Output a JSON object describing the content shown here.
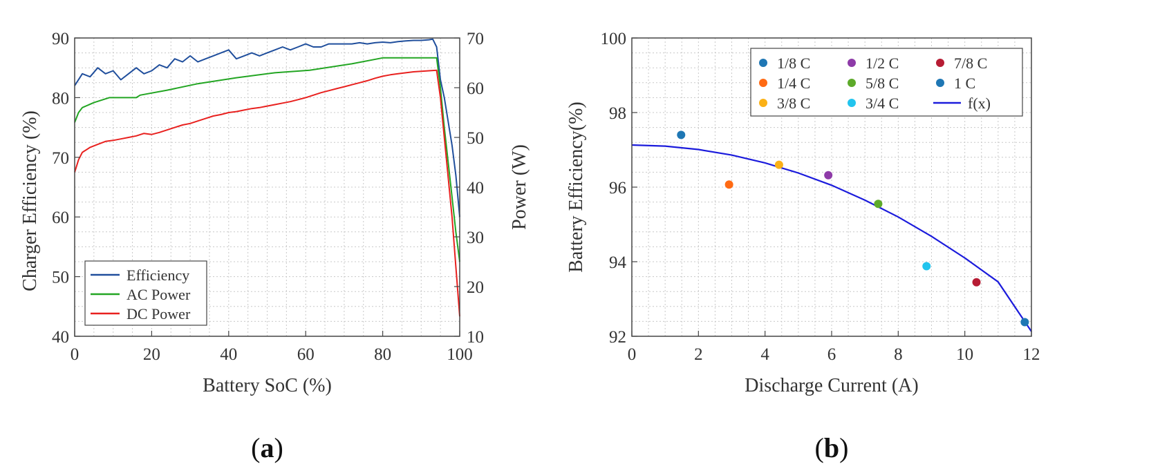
{
  "chart_data": [
    {
      "panel": "(a)",
      "type": "line",
      "xlabel": "Battery SoC (%)",
      "ylabel_left": "Charger Efficiency (%)",
      "ylabel_right": "Power (W)",
      "xlim": [
        0,
        100
      ],
      "ylim_left": [
        40,
        90
      ],
      "ylim_right": [
        10,
        70
      ],
      "x_ticks": [
        0,
        20,
        40,
        60,
        80,
        100
      ],
      "y_ticks_left": [
        40,
        50,
        60,
        70,
        80,
        90
      ],
      "y_ticks_right": [
        10,
        20,
        30,
        40,
        50,
        60,
        70
      ],
      "grid": true,
      "legend_position": "bottom-left",
      "series": [
        {
          "name": "Efficiency",
          "axis": "left",
          "color": "#1f4e9c",
          "points": [
            [
              0,
              82
            ],
            [
              2,
              84
            ],
            [
              4,
              83.5
            ],
            [
              6,
              85
            ],
            [
              8,
              84
            ],
            [
              10,
              84.5
            ],
            [
              12,
              83
            ],
            [
              14,
              84
            ],
            [
              16,
              85
            ],
            [
              18,
              84
            ],
            [
              20,
              84.5
            ],
            [
              22,
              85.5
            ],
            [
              24,
              85
            ],
            [
              26,
              86.5
            ],
            [
              28,
              86
            ],
            [
              30,
              87
            ],
            [
              32,
              86
            ],
            [
              34,
              86.5
            ],
            [
              36,
              87
            ],
            [
              38,
              87.5
            ],
            [
              40,
              88
            ],
            [
              42,
              86.5
            ],
            [
              44,
              87
            ],
            [
              46,
              87.5
            ],
            [
              48,
              87
            ],
            [
              50,
              87.5
            ],
            [
              52,
              88
            ],
            [
              54,
              88.5
            ],
            [
              56,
              88
            ],
            [
              58,
              88.5
            ],
            [
              60,
              89
            ],
            [
              62,
              88.5
            ],
            [
              64,
              88.5
            ],
            [
              66,
              89
            ],
            [
              68,
              89
            ],
            [
              70,
              89
            ],
            [
              72,
              89
            ],
            [
              74,
              89.2
            ],
            [
              76,
              89
            ],
            [
              78,
              89.2
            ],
            [
              80,
              89.3
            ],
            [
              82,
              89.2
            ],
            [
              84,
              89.4
            ],
            [
              86,
              89.5
            ],
            [
              88,
              89.6
            ],
            [
              90,
              89.6
            ],
            [
              92,
              89.7
            ],
            [
              93,
              89.8
            ],
            [
              94,
              88.5
            ],
            [
              95,
              83
            ],
            [
              96,
              80
            ],
            [
              97,
              76
            ],
            [
              98,
              72
            ],
            [
              99,
              67
            ],
            [
              100,
              60
            ]
          ]
        },
        {
          "name": "AC Power",
          "axis": "right",
          "color": "#22a522",
          "points": [
            [
              0,
              53
            ],
            [
              1,
              55
            ],
            [
              2,
              56
            ],
            [
              5,
              57
            ],
            [
              9,
              58
            ],
            [
              16,
              58
            ],
            [
              17,
              58.5
            ],
            [
              24,
              59.5
            ],
            [
              32,
              60.8
            ],
            [
              42,
              62
            ],
            [
              52,
              63
            ],
            [
              61,
              63.5
            ],
            [
              72,
              64.8
            ],
            [
              80,
              66
            ],
            [
              94,
              66
            ],
            [
              95,
              60
            ],
            [
              96,
              52
            ],
            [
              97,
              45
            ],
            [
              98,
              38
            ],
            [
              99,
              31
            ],
            [
              100,
              25
            ]
          ]
        },
        {
          "name": "DC Power",
          "axis": "right",
          "color": "#e8201e",
          "points": [
            [
              0,
              43
            ],
            [
              1,
              45.5
            ],
            [
              2,
              47
            ],
            [
              4,
              48
            ],
            [
              6,
              48.6
            ],
            [
              8,
              49.2
            ],
            [
              10,
              49.4
            ],
            [
              12,
              49.7
            ],
            [
              14,
              50
            ],
            [
              16,
              50.3
            ],
            [
              18,
              50.8
            ],
            [
              20,
              50.6
            ],
            [
              22,
              51
            ],
            [
              24,
              51.5
            ],
            [
              26,
              52
            ],
            [
              28,
              52.5
            ],
            [
              30,
              52.8
            ],
            [
              32,
              53.3
            ],
            [
              34,
              53.8
            ],
            [
              36,
              54.3
            ],
            [
              38,
              54.6
            ],
            [
              40,
              55
            ],
            [
              42,
              55.2
            ],
            [
              44,
              55.5
            ],
            [
              46,
              55.8
            ],
            [
              48,
              56
            ],
            [
              50,
              56.3
            ],
            [
              52,
              56.6
            ],
            [
              54,
              56.9
            ],
            [
              56,
              57.2
            ],
            [
              58,
              57.6
            ],
            [
              60,
              58
            ],
            [
              62,
              58.5
            ],
            [
              64,
              59
            ],
            [
              66,
              59.4
            ],
            [
              68,
              59.8
            ],
            [
              70,
              60.2
            ],
            [
              72,
              60.6
            ],
            [
              74,
              61
            ],
            [
              76,
              61.4
            ],
            [
              78,
              61.9
            ],
            [
              80,
              62.3
            ],
            [
              82,
              62.6
            ],
            [
              84,
              62.8
            ],
            [
              86,
              63
            ],
            [
              88,
              63.2
            ],
            [
              90,
              63.3
            ],
            [
              92,
              63.4
            ],
            [
              94,
              63.5
            ],
            [
              95,
              58
            ],
            [
              96,
              50
            ],
            [
              97,
              42
            ],
            [
              98,
              34
            ],
            [
              99,
              24
            ],
            [
              100,
              14
            ]
          ]
        }
      ]
    },
    {
      "panel": "(b)",
      "type": "scatter",
      "xlabel": "Discharge Current (A)",
      "ylabel": "Battery Efficiency(%)",
      "xlim": [
        0,
        12
      ],
      "ylim": [
        92,
        100
      ],
      "x_ticks": [
        0,
        2,
        4,
        6,
        8,
        10,
        12
      ],
      "y_ticks": [
        92,
        94,
        96,
        98,
        100
      ],
      "grid": true,
      "legend_position": "top",
      "points": [
        {
          "name": "1/8 C",
          "x": 1.48,
          "y": 97.4,
          "color": "#1f77b4"
        },
        {
          "name": "1/4 C",
          "x": 2.92,
          "y": 96.07,
          "color": "#ff6a13"
        },
        {
          "name": "3/8 C",
          "x": 4.42,
          "y": 96.6,
          "color": "#fbb116"
        },
        {
          "name": "1/2 C",
          "x": 5.9,
          "y": 96.32,
          "color": "#8e3ba8"
        },
        {
          "name": "5/8 C",
          "x": 7.4,
          "y": 95.55,
          "color": "#5daa2a"
        },
        {
          "name": "3/4 C",
          "x": 8.85,
          "y": 93.88,
          "color": "#22c4ee"
        },
        {
          "name": "7/8 C",
          "x": 10.35,
          "y": 93.45,
          "color": "#b71c34"
        },
        {
          "name": "1 C",
          "x": 11.8,
          "y": 92.38,
          "color": "#1f77b4"
        }
      ],
      "fit": {
        "name": "f(x)",
        "color": "#1b1bdc",
        "points": [
          [
            0,
            97.13
          ],
          [
            1,
            97.1
          ],
          [
            2,
            97.01
          ],
          [
            3,
            96.86
          ],
          [
            4,
            96.65
          ],
          [
            5,
            96.38
          ],
          [
            6,
            96.05
          ],
          [
            7,
            95.65
          ],
          [
            8,
            95.2
          ],
          [
            9,
            94.68
          ],
          [
            10,
            94.1
          ],
          [
            11,
            93.46
          ],
          [
            12,
            92.13
          ]
        ]
      },
      "legend_order": [
        "1/8 C",
        "1/2 C",
        "7/8 C",
        "1/4 C",
        "5/8 C",
        "1 C",
        "3/8 C",
        "3/4 C",
        "f(x)"
      ]
    }
  ],
  "captions": {
    "a": {
      "open": "(",
      "letter": "a",
      "close": ")"
    },
    "b": {
      "open": "(",
      "letter": "b",
      "close": ")"
    }
  }
}
